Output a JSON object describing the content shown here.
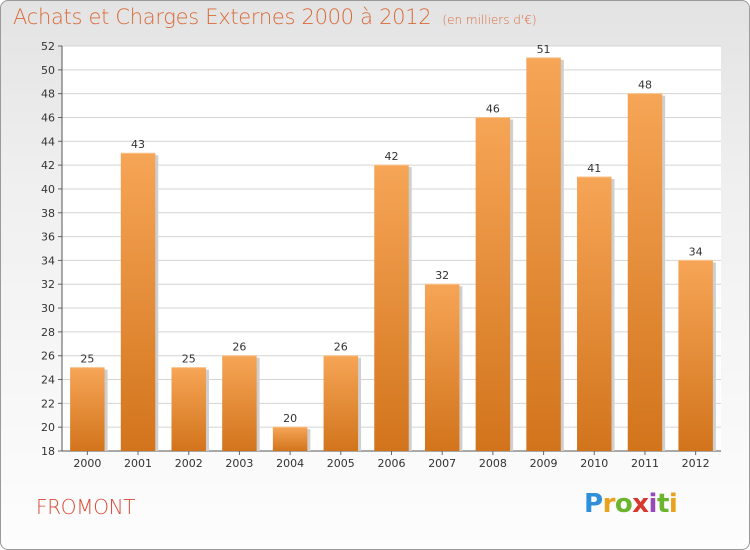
{
  "header": {
    "title": "Achats et Charges Externes 2000 à 2012",
    "unit": "(en milliers d'€)"
  },
  "footer": {
    "commune": "FROMONT",
    "logo_text": "Proxiti"
  },
  "colors": {
    "title": "#d96a3a",
    "bar_light": "#f6a556",
    "bar_dark": "#d2741c",
    "commune": "#d84a35"
  },
  "chart_data": {
    "type": "bar",
    "title": "Achats et Charges Externes 2000 à 2012",
    "subtitle": "(en milliers d'€)",
    "xlabel": "",
    "ylabel": "",
    "categories": [
      "2000",
      "2001",
      "2002",
      "2003",
      "2004",
      "2005",
      "2006",
      "2007",
      "2008",
      "2009",
      "2010",
      "2011",
      "2012"
    ],
    "values": [
      25,
      43,
      25,
      26,
      20,
      26,
      42,
      32,
      46,
      51,
      41,
      48,
      34
    ],
    "ylim": [
      18,
      52
    ],
    "yticks": [
      18,
      20,
      22,
      24,
      26,
      28,
      30,
      32,
      34,
      36,
      38,
      40,
      42,
      44,
      46,
      48,
      50,
      52
    ],
    "grid": true,
    "data_labels": true,
    "legend": "none"
  }
}
